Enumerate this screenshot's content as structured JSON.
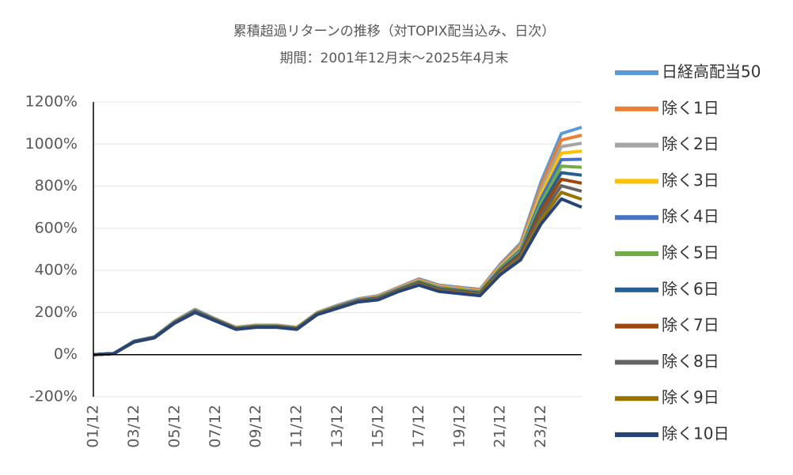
{
  "chart_data": {
    "type": "line",
    "title": "累積超過リターンの推移（対TOPIX配当込み、日次）",
    "subtitle": "期間：2001年12月末～2025年4月末",
    "categories": [
      "01/12",
      null,
      "03/12",
      null,
      "05/12",
      null,
      "07/12",
      null,
      "09/12",
      null,
      "11/12",
      null,
      "13/12",
      null,
      "15/12",
      null,
      "17/12",
      null,
      "19/12",
      null,
      "21/12",
      null,
      "23/12",
      null,
      null
    ],
    "ylim": [
      -200,
      1200
    ],
    "yticks": [
      {
        "value": -200,
        "label": "-200%"
      },
      {
        "value": 0,
        "label": "0%"
      },
      {
        "value": 200,
        "label": "200%"
      },
      {
        "value": 400,
        "label": "400%"
      },
      {
        "value": 600,
        "label": "600%"
      },
      {
        "value": 800,
        "label": "800%"
      },
      {
        "value": 1000,
        "label": "1000%"
      },
      {
        "value": 1200,
        "label": "1200%"
      }
    ],
    "grid": true,
    "legend": "right",
    "series": [
      {
        "name": "日経高配当50",
        "color": "#5b9bd5",
        "values": [
          0,
          5,
          65,
          85,
          160,
          215,
          170,
          130,
          140,
          140,
          130,
          200,
          235,
          265,
          280,
          320,
          360,
          330,
          320,
          310,
          430,
          530,
          820,
          1050,
          1080
        ]
      },
      {
        "name": "除く1日",
        "color": "#ed7d31",
        "values": [
          0,
          5,
          64,
          84,
          159,
          213,
          169,
          129,
          139,
          139,
          129,
          199,
          233,
          263,
          278,
          318,
          357,
          327,
          317,
          307,
          425,
          522,
          800,
          1019,
          1042
        ]
      },
      {
        "name": "除く2日",
        "color": "#a5a5a5",
        "values": [
          0,
          5,
          64,
          84,
          158,
          212,
          168,
          128,
          138,
          138,
          128,
          198,
          232,
          262,
          276,
          316,
          354,
          324,
          314,
          304,
          420,
          514,
          780,
          988,
          1004
        ]
      },
      {
        "name": "除く3日",
        "color": "#ffc000",
        "values": [
          0,
          5,
          63,
          83,
          157,
          210,
          167,
          127,
          137,
          137,
          127,
          197,
          230,
          260,
          274,
          314,
          351,
          321,
          311,
          301,
          415,
          506,
          760,
          957,
          966
        ]
      },
      {
        "name": "除く4日",
        "color": "#4472c4",
        "values": [
          0,
          5,
          63,
          83,
          156,
          209,
          166,
          126,
          136,
          136,
          126,
          196,
          229,
          259,
          272,
          312,
          348,
          318,
          308,
          298,
          410,
          498,
          740,
          926,
          928
        ]
      },
      {
        "name": "除く5日",
        "color": "#70ad47",
        "values": [
          0,
          5,
          62,
          82,
          155,
          207,
          165,
          125,
          135,
          135,
          125,
          195,
          227,
          257,
          270,
          310,
          345,
          315,
          305,
          295,
          405,
          490,
          720,
          895,
          890
        ]
      },
      {
        "name": "除く6日",
        "color": "#255e91",
        "values": [
          0,
          5,
          62,
          82,
          154,
          206,
          164,
          124,
          134,
          134,
          124,
          194,
          226,
          256,
          268,
          308,
          342,
          312,
          302,
          292,
          400,
          482,
          700,
          864,
          852
        ]
      },
      {
        "name": "除く7日",
        "color": "#9e480e",
        "values": [
          0,
          5,
          61,
          81,
          153,
          204,
          163,
          123,
          133,
          133,
          123,
          193,
          224,
          254,
          266,
          306,
          339,
          309,
          299,
          289,
          395,
          474,
          680,
          833,
          814
        ]
      },
      {
        "name": "除く8日",
        "color": "#636363",
        "values": [
          0,
          5,
          61,
          81,
          152,
          203,
          162,
          122,
          132,
          132,
          122,
          192,
          223,
          253,
          264,
          304,
          336,
          306,
          296,
          286,
          390,
          466,
          660,
          802,
          776
        ]
      },
      {
        "name": "除く9日",
        "color": "#997300",
        "values": [
          0,
          5,
          60,
          80,
          151,
          201,
          161,
          121,
          131,
          131,
          121,
          191,
          221,
          251,
          262,
          302,
          333,
          303,
          293,
          283,
          385,
          458,
          640,
          771,
          738
        ]
      },
      {
        "name": "除く10日",
        "color": "#264478",
        "values": [
          0,
          5,
          60,
          80,
          150,
          200,
          160,
          120,
          130,
          130,
          120,
          190,
          220,
          250,
          260,
          300,
          330,
          300,
          290,
          280,
          380,
          450,
          620,
          740,
          700
        ]
      }
    ]
  }
}
